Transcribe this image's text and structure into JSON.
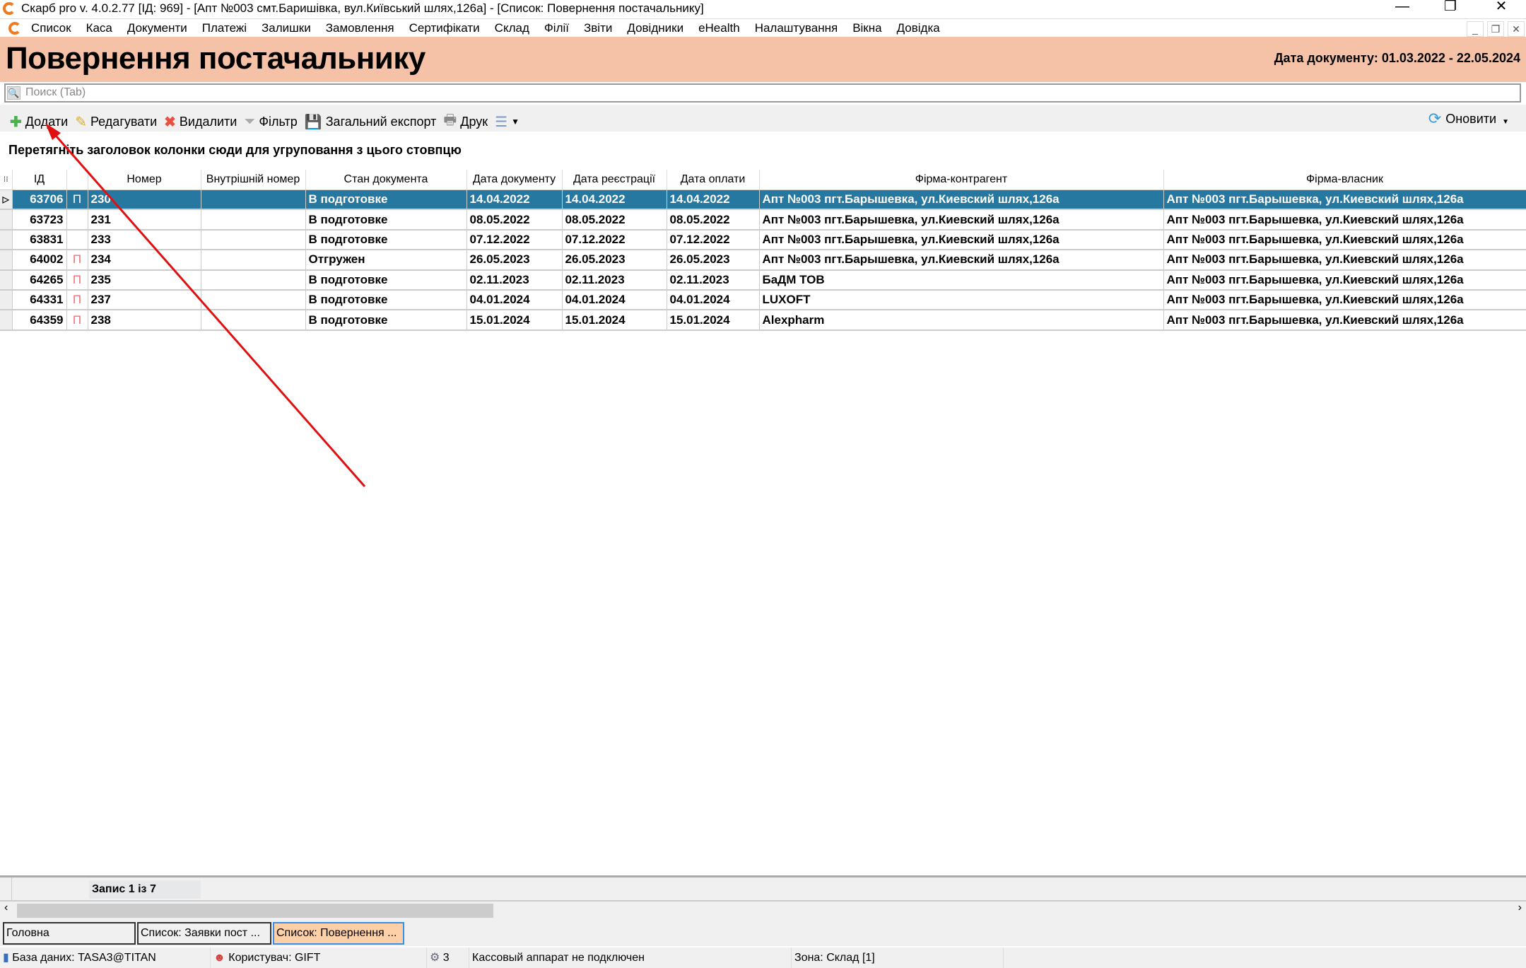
{
  "window": {
    "title": "Скарб pro v. 4.0.2.77 [ІД: 969] - [Апт №003 смт.Баришівка, вул.Київський шлях,126а] - [Список: Повернення постачальнику]"
  },
  "menu": [
    "Список",
    "Каса",
    "Документи",
    "Платежі",
    "Залишки",
    "Замовлення",
    "Сертифікати",
    "Склад",
    "Філії",
    "Звіти",
    "Довідники",
    "eHealth",
    "Налаштування",
    "Вікна",
    "Довідка"
  ],
  "header": {
    "title": "Повернення постачальнику",
    "date_range": "Дата документу: 01.03.2022 - 22.05.2024"
  },
  "search": {
    "placeholder": "Поиск (Tab)"
  },
  "toolbar": {
    "add": "Додати",
    "edit": "Редагувати",
    "delete": "Видалити",
    "filter": "Фільтр",
    "export": "Загальний експорт",
    "print": "Друк",
    "refresh": "Оновити"
  },
  "group_hint": "Перетягніть заголовок колонки сюди для угруповання з цього стовпцю",
  "grid": {
    "columns": [
      "ІД",
      "",
      "Номер",
      "Внутрішній номер",
      "Стан документа",
      "Дата документу",
      "Дата реєстрації",
      "Дата оплати",
      "Фірма-контрагент",
      "Фірма-власник"
    ],
    "rows": [
      [
        "63706",
        "П",
        "230",
        "",
        "В подготовке",
        "14.04.2022",
        "14.04.2022",
        "14.04.2022",
        "Апт №003 пгт.Барышевка, ул.Киевский шлях,126а",
        "Апт №003 пгт.Барышевка, ул.Киевский шлях,126а"
      ],
      [
        "63723",
        "",
        "231",
        "",
        "В подготовке",
        "08.05.2022",
        "08.05.2022",
        "08.05.2022",
        "Апт №003 пгт.Барышевка, ул.Киевский шлях,126а",
        "Апт №003 пгт.Барышевка, ул.Киевский шлях,126а"
      ],
      [
        "63831",
        "",
        "233",
        "",
        "В подготовке",
        "07.12.2022",
        "07.12.2022",
        "07.12.2022",
        "Апт №003 пгт.Барышевка, ул.Киевский шлях,126а",
        "Апт №003 пгт.Барышевка, ул.Киевский шлях,126а"
      ],
      [
        "64002",
        "П",
        "234",
        "",
        "Отгружен",
        "26.05.2023",
        "26.05.2023",
        "26.05.2023",
        "Апт №003 пгт.Барышевка, ул.Киевский шлях,126а",
        "Апт №003 пгт.Барышевка, ул.Киевский шлях,126а"
      ],
      [
        "64265",
        "П",
        "235",
        "",
        "В подготовке",
        "02.11.2023",
        "02.11.2023",
        "02.11.2023",
        "БаДМ ТОВ",
        "Апт №003 пгт.Барышевка, ул.Киевский шлях,126а"
      ],
      [
        "64331",
        "П",
        "237",
        "",
        "В подготовке",
        "04.01.2024",
        "04.01.2024",
        "04.01.2024",
        "LUXOFT",
        "Апт №003 пгт.Барышевка, ул.Киевский шлях,126а"
      ],
      [
        "64359",
        "П",
        "238",
        "",
        "В подготовке",
        "15.01.2024",
        "15.01.2024",
        "15.01.2024",
        "Alexpharm",
        "Апт №003 пгт.Барышевка, ул.Киевский шлях,126а"
      ]
    ],
    "selected_row": 0
  },
  "footer": {
    "record": "Запис 1 із 7"
  },
  "tabs": [
    {
      "label": "Головна",
      "active": false
    },
    {
      "label": "Список: Заявки пост ...",
      "active": false
    },
    {
      "label": "Список: Повернення  ...",
      "active": true
    }
  ],
  "status": {
    "db": "База даних: TASA3@TITAN",
    "user": "Користувач: GIFT",
    "count": "3",
    "cash": "Кассовый аппарат не подключен",
    "zone": "Зона: Склад [1]"
  },
  "colors": {
    "header_bg": "#f5c2a8",
    "selected_row": "#2678a0",
    "annotation_arrow": "#e01010"
  }
}
